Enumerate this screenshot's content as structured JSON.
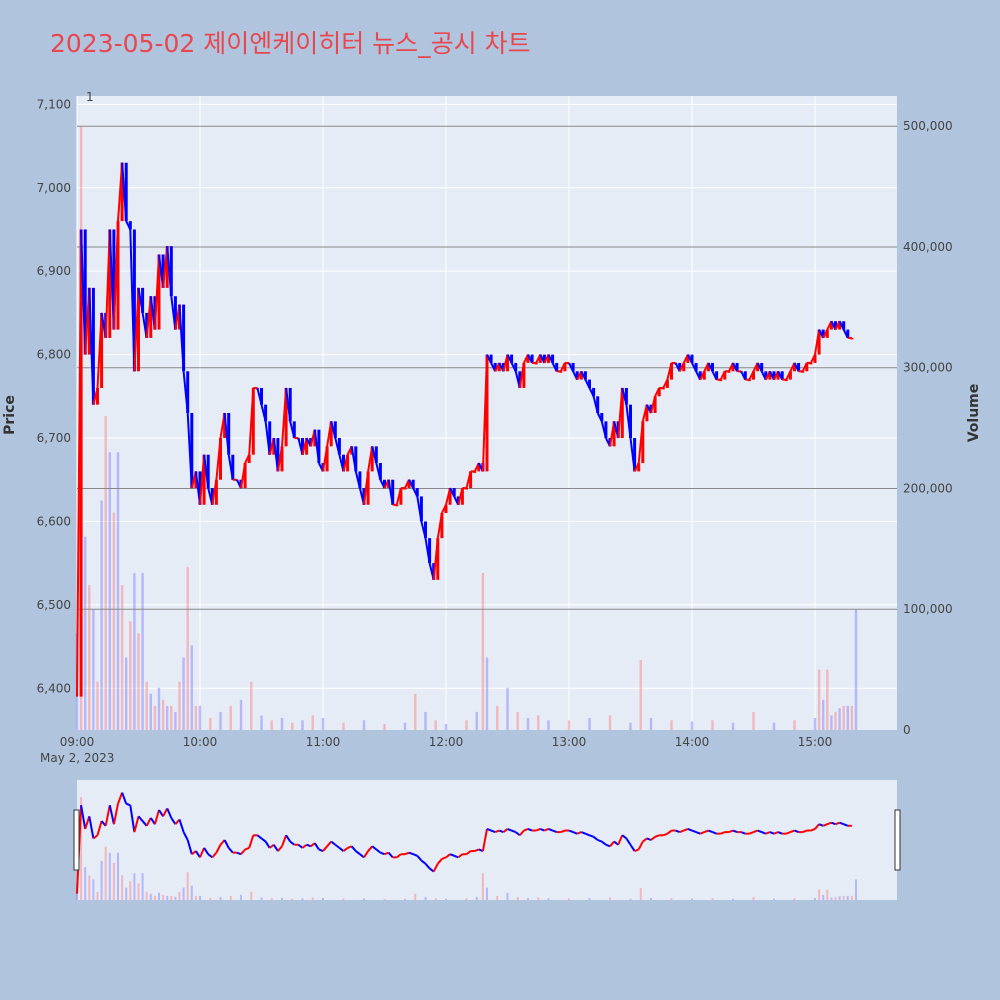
{
  "header": {
    "title": "2023-05-02 제이엔케이히터 뉴스_공시 차트"
  },
  "colors": {
    "up": "#ff0000",
    "down": "#0000ff",
    "background": "#b0c4de",
    "plot_bg": "#e5ecf6",
    "title": "#e8474f",
    "gridline": "#ffffff",
    "hline": "#888888"
  },
  "chart_data": {
    "type": "candlestick",
    "title": "2023-05-02 제이엔케이히터 뉴스_공시 차트",
    "ylabel": "Price",
    "y2label": "Volume",
    "date_label": "May 2, 2023",
    "x_ticks": [
      "09:00",
      "10:00",
      "11:00",
      "12:00",
      "13:00",
      "14:00",
      "15:00"
    ],
    "y_ticks": [
      "6,400",
      "6,500",
      "6,600",
      "6,700",
      "6,800",
      "6,900",
      "7,000",
      "7,100"
    ],
    "y2_ticks": [
      "0",
      "100,000",
      "200,000",
      "300,000",
      "400,000",
      "500,000"
    ],
    "ylim": [
      6350,
      7110
    ],
    "y2lim": [
      0,
      525000
    ],
    "annotation": "1",
    "hlines_volume": [
      100000,
      200000,
      300000,
      400000,
      500000
    ],
    "price_path": [
      [
        "09:00",
        6390
      ],
      [
        "09:02",
        6950
      ],
      [
        "09:04",
        6800
      ],
      [
        "09:06",
        6880
      ],
      [
        "09:08",
        6740
      ],
      [
        "09:10",
        6760
      ],
      [
        "09:12",
        6850
      ],
      [
        "09:14",
        6820
      ],
      [
        "09:16",
        6950
      ],
      [
        "09:18",
        6830
      ],
      [
        "09:20",
        6960
      ],
      [
        "09:22",
        7030
      ],
      [
        "09:24",
        6960
      ],
      [
        "09:26",
        6950
      ],
      [
        "09:28",
        6780
      ],
      [
        "09:30",
        6880
      ],
      [
        "09:32",
        6850
      ],
      [
        "09:34",
        6820
      ],
      [
        "09:36",
        6870
      ],
      [
        "09:38",
        6830
      ],
      [
        "09:40",
        6920
      ],
      [
        "09:42",
        6880
      ],
      [
        "09:44",
        6930
      ],
      [
        "09:46",
        6870
      ],
      [
        "09:48",
        6830
      ],
      [
        "09:50",
        6860
      ],
      [
        "09:52",
        6780
      ],
      [
        "09:54",
        6730
      ],
      [
        "09:56",
        6640
      ],
      [
        "09:58",
        6660
      ],
      [
        "10:00",
        6620
      ],
      [
        "10:02",
        6680
      ],
      [
        "10:04",
        6640
      ],
      [
        "10:06",
        6620
      ],
      [
        "10:08",
        6650
      ],
      [
        "10:10",
        6700
      ],
      [
        "10:12",
        6730
      ],
      [
        "10:14",
        6680
      ],
      [
        "10:16",
        6650
      ],
      [
        "10:18",
        6650
      ],
      [
        "10:20",
        6640
      ],
      [
        "10:22",
        6670
      ],
      [
        "10:24",
        6680
      ],
      [
        "10:26",
        6760
      ],
      [
        "10:28",
        6760
      ],
      [
        "10:30",
        6740
      ],
      [
        "10:32",
        6720
      ],
      [
        "10:34",
        6680
      ],
      [
        "10:36",
        6700
      ],
      [
        "10:38",
        6660
      ],
      [
        "10:40",
        6690
      ],
      [
        "10:42",
        6760
      ],
      [
        "10:44",
        6720
      ],
      [
        "10:46",
        6700
      ],
      [
        "10:48",
        6700
      ],
      [
        "10:50",
        6680
      ],
      [
        "10:52",
        6700
      ],
      [
        "10:54",
        6690
      ],
      [
        "10:56",
        6710
      ],
      [
        "10:58",
        6670
      ],
      [
        "11:00",
        6660
      ],
      [
        "11:02",
        6690
      ],
      [
        "11:04",
        6720
      ],
      [
        "11:06",
        6700
      ],
      [
        "11:08",
        6680
      ],
      [
        "11:10",
        6660
      ],
      [
        "11:12",
        6680
      ],
      [
        "11:14",
        6690
      ],
      [
        "11:16",
        6660
      ],
      [
        "11:18",
        6640
      ],
      [
        "11:20",
        6620
      ],
      [
        "11:22",
        6660
      ],
      [
        "11:24",
        6690
      ],
      [
        "11:26",
        6670
      ],
      [
        "11:28",
        6650
      ],
      [
        "11:30",
        6640
      ],
      [
        "11:32",
        6650
      ],
      [
        "11:34",
        6620
      ],
      [
        "11:36",
        6620
      ],
      [
        "11:38",
        6640
      ],
      [
        "11:40",
        6640
      ],
      [
        "11:42",
        6650
      ],
      [
        "11:44",
        6640
      ],
      [
        "11:46",
        6630
      ],
      [
        "11:48",
        6600
      ],
      [
        "11:50",
        6580
      ],
      [
        "11:52",
        6550
      ],
      [
        "11:54",
        6530
      ],
      [
        "11:56",
        6580
      ],
      [
        "11:58",
        6610
      ],
      [
        "12:00",
        6620
      ],
      [
        "12:02",
        6640
      ],
      [
        "12:04",
        6630
      ],
      [
        "12:06",
        6620
      ],
      [
        "12:08",
        6640
      ],
      [
        "12:10",
        6640
      ],
      [
        "12:12",
        6660
      ],
      [
        "12:14",
        6660
      ],
      [
        "12:16",
        6670
      ],
      [
        "12:18",
        6660
      ],
      [
        "12:20",
        6800
      ],
      [
        "12:22",
        6790
      ],
      [
        "12:24",
        6780
      ],
      [
        "12:26",
        6790
      ],
      [
        "12:28",
        6780
      ],
      [
        "12:30",
        6800
      ],
      [
        "12:32",
        6790
      ],
      [
        "12:34",
        6780
      ],
      [
        "12:36",
        6760
      ],
      [
        "12:38",
        6790
      ],
      [
        "12:40",
        6800
      ],
      [
        "12:42",
        6790
      ],
      [
        "12:44",
        6790
      ],
      [
        "12:46",
        6800
      ],
      [
        "12:48",
        6790
      ],
      [
        "12:50",
        6800
      ],
      [
        "12:52",
        6790
      ],
      [
        "12:54",
        6780
      ],
      [
        "12:56",
        6780
      ],
      [
        "12:58",
        6790
      ],
      [
        "13:00",
        6790
      ],
      [
        "13:02",
        6780
      ],
      [
        "13:04",
        6770
      ],
      [
        "13:06",
        6780
      ],
      [
        "13:08",
        6770
      ],
      [
        "13:10",
        6760
      ],
      [
        "13:12",
        6750
      ],
      [
        "13:14",
        6730
      ],
      [
        "13:16",
        6720
      ],
      [
        "13:18",
        6700
      ],
      [
        "13:20",
        6690
      ],
      [
        "13:22",
        6720
      ],
      [
        "13:24",
        6700
      ],
      [
        "13:26",
        6760
      ],
      [
        "13:28",
        6740
      ],
      [
        "13:30",
        6700
      ],
      [
        "13:32",
        6660
      ],
      [
        "13:34",
        6670
      ],
      [
        "13:36",
        6720
      ],
      [
        "13:38",
        6740
      ],
      [
        "13:40",
        6730
      ],
      [
        "13:42",
        6750
      ],
      [
        "13:44",
        6760
      ],
      [
        "13:46",
        6760
      ],
      [
        "13:48",
        6770
      ],
      [
        "13:50",
        6790
      ],
      [
        "13:52",
        6790
      ],
      [
        "13:54",
        6780
      ],
      [
        "13:56",
        6790
      ],
      [
        "13:58",
        6800
      ],
      [
        "14:00",
        6790
      ],
      [
        "14:02",
        6780
      ],
      [
        "14:04",
        6770
      ],
      [
        "14:06",
        6780
      ],
      [
        "14:08",
        6790
      ],
      [
        "14:10",
        6780
      ],
      [
        "14:12",
        6770
      ],
      [
        "14:14",
        6770
      ],
      [
        "14:16",
        6780
      ],
      [
        "14:18",
        6780
      ],
      [
        "14:20",
        6790
      ],
      [
        "14:22",
        6780
      ],
      [
        "14:24",
        6780
      ],
      [
        "14:26",
        6770
      ],
      [
        "14:28",
        6770
      ],
      [
        "14:30",
        6780
      ],
      [
        "14:32",
        6790
      ],
      [
        "14:34",
        6780
      ],
      [
        "14:36",
        6770
      ],
      [
        "14:38",
        6780
      ],
      [
        "14:40",
        6770
      ],
      [
        "14:42",
        6780
      ],
      [
        "14:44",
        6770
      ],
      [
        "14:46",
        6770
      ],
      [
        "14:48",
        6780
      ],
      [
        "14:50",
        6790
      ],
      [
        "14:52",
        6780
      ],
      [
        "14:54",
        6780
      ],
      [
        "14:56",
        6790
      ],
      [
        "14:58",
        6790
      ],
      [
        "15:00",
        6800
      ],
      [
        "15:02",
        6830
      ],
      [
        "15:04",
        6820
      ],
      [
        "15:06",
        6830
      ],
      [
        "15:08",
        6840
      ],
      [
        "15:10",
        6830
      ],
      [
        "15:12",
        6840
      ],
      [
        "15:14",
        6830
      ],
      [
        "15:16",
        6820
      ],
      [
        "15:18",
        6820
      ]
    ],
    "volume": [
      [
        "09:00",
        80000
      ],
      [
        "09:02",
        500000
      ],
      [
        "09:04",
        160000
      ],
      [
        "09:06",
        120000
      ],
      [
        "09:08",
        100000
      ],
      [
        "09:10",
        40000
      ],
      [
        "09:12",
        190000
      ],
      [
        "09:14",
        260000
      ],
      [
        "09:16",
        230000
      ],
      [
        "09:18",
        180000
      ],
      [
        "09:20",
        230000
      ],
      [
        "09:22",
        120000
      ],
      [
        "09:24",
        60000
      ],
      [
        "09:26",
        90000
      ],
      [
        "09:28",
        130000
      ],
      [
        "09:30",
        80000
      ],
      [
        "09:32",
        130000
      ],
      [
        "09:34",
        40000
      ],
      [
        "09:36",
        30000
      ],
      [
        "09:38",
        20000
      ],
      [
        "09:40",
        35000
      ],
      [
        "09:42",
        25000
      ],
      [
        "09:44",
        20000
      ],
      [
        "09:46",
        20000
      ],
      [
        "09:48",
        15000
      ],
      [
        "09:50",
        40000
      ],
      [
        "09:52",
        60000
      ],
      [
        "09:54",
        135000
      ],
      [
        "09:56",
        70000
      ],
      [
        "09:58",
        20000
      ],
      [
        "10:00",
        20000
      ],
      [
        "10:05",
        10000
      ],
      [
        "10:10",
        15000
      ],
      [
        "10:15",
        20000
      ],
      [
        "10:20",
        25000
      ],
      [
        "10:25",
        40000
      ],
      [
        "10:30",
        12000
      ],
      [
        "10:35",
        8000
      ],
      [
        "10:40",
        10000
      ],
      [
        "10:45",
        6000
      ],
      [
        "10:50",
        8000
      ],
      [
        "10:55",
        12000
      ],
      [
        "11:00",
        10000
      ],
      [
        "11:10",
        6000
      ],
      [
        "11:20",
        8000
      ],
      [
        "11:30",
        5000
      ],
      [
        "11:40",
        6000
      ],
      [
        "11:45",
        30000
      ],
      [
        "11:50",
        15000
      ],
      [
        "11:55",
        8000
      ],
      [
        "12:00",
        5000
      ],
      [
        "12:10",
        8000
      ],
      [
        "12:15",
        15000
      ],
      [
        "12:18",
        130000
      ],
      [
        "12:20",
        60000
      ],
      [
        "12:25",
        20000
      ],
      [
        "12:30",
        35000
      ],
      [
        "12:35",
        15000
      ],
      [
        "12:40",
        10000
      ],
      [
        "12:45",
        12000
      ],
      [
        "12:50",
        8000
      ],
      [
        "13:00",
        8000
      ],
      [
        "13:10",
        10000
      ],
      [
        "13:20",
        12000
      ],
      [
        "13:30",
        6000
      ],
      [
        "13:35",
        58000
      ],
      [
        "13:40",
        10000
      ],
      [
        "13:50",
        8000
      ],
      [
        "14:00",
        7000
      ],
      [
        "14:10",
        8000
      ],
      [
        "14:20",
        6000
      ],
      [
        "14:30",
        15000
      ],
      [
        "14:40",
        6000
      ],
      [
        "14:50",
        8000
      ],
      [
        "15:00",
        10000
      ],
      [
        "15:02",
        50000
      ],
      [
        "15:04",
        25000
      ],
      [
        "15:06",
        50000
      ],
      [
        "15:08",
        12000
      ],
      [
        "15:10",
        15000
      ],
      [
        "15:12",
        18000
      ],
      [
        "15:14",
        20000
      ],
      [
        "15:16",
        20000
      ],
      [
        "15:18",
        20000
      ],
      [
        "15:20",
        100000
      ]
    ]
  }
}
